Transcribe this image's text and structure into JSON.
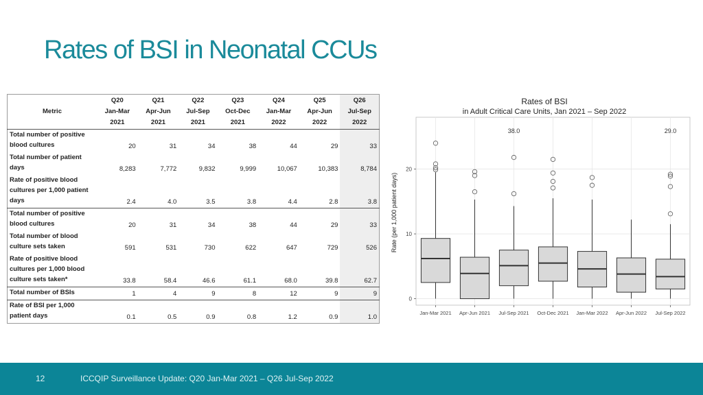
{
  "slide": {
    "title": "Rates of BSI in Neonatal CCUs",
    "page_number": "12",
    "footer_text": "ICCQIP Surveillance Update: Q20 Jan-Mar 2021 – Q26 Jul-Sep 2022"
  },
  "table": {
    "metric_header": "Metric",
    "columns": [
      {
        "q": "Q20",
        "months": "Jan-Mar",
        "year": "2021"
      },
      {
        "q": "Q21",
        "months": "Apr-Jun",
        "year": "2021"
      },
      {
        "q": "Q22",
        "months": "Jul-Sep",
        "year": "2021"
      },
      {
        "q": "Q23",
        "months": "Oct-Dec",
        "year": "2021"
      },
      {
        "q": "Q24",
        "months": "Jan-Mar",
        "year": "2022"
      },
      {
        "q": "Q25",
        "months": "Apr-Jun",
        "year": "2022"
      },
      {
        "q": "Q26",
        "months": "Jul-Sep",
        "year": "2022"
      }
    ],
    "rows": [
      {
        "label": [
          "Total number of positive",
          "blood cultures"
        ],
        "values": [
          "20",
          "31",
          "34",
          "38",
          "44",
          "29",
          "33"
        ]
      },
      {
        "label": [
          "Total number of patient",
          "days"
        ],
        "values": [
          "8,283",
          "7,772",
          "9,832",
          "9,999",
          "10,067",
          "10,383",
          "8,784"
        ]
      },
      {
        "label": [
          "Rate of positive blood",
          "cultures per 1,000 patient",
          "days"
        ],
        "values": [
          "2.4",
          "4.0",
          "3.5",
          "3.8",
          "4.4",
          "2.8",
          "3.8"
        ]
      },
      {
        "label": [
          "Total number of positive",
          "blood cultures"
        ],
        "values": [
          "20",
          "31",
          "34",
          "38",
          "44",
          "29",
          "33"
        ]
      },
      {
        "label": [
          "Total number of blood",
          "culture sets taken"
        ],
        "values": [
          "591",
          "531",
          "730",
          "622",
          "647",
          "729",
          "526"
        ]
      },
      {
        "label": [
          "Rate of positive blood",
          "cultures per 1,000 blood",
          "culture sets taken*"
        ],
        "values": [
          "33.8",
          "58.4",
          "46.6",
          "61.1",
          "68.0",
          "39.8",
          "62.7"
        ]
      },
      {
        "label": [
          "Total number of BSIs"
        ],
        "values": [
          "1",
          "4",
          "9",
          "8",
          "12",
          "9",
          "9"
        ]
      },
      {
        "label": [
          "Rate of BSI per 1,000",
          "patient days"
        ],
        "values": [
          "0.1",
          "0.5",
          "0.9",
          "0.8",
          "1.2",
          "0.9",
          "1.0"
        ]
      }
    ]
  },
  "chart_data": {
    "type": "box",
    "title": "Rates of BSI",
    "subtitle": "in Adult Critical Care Units, Jan 2021 – Sep 2022",
    "ylabel": "Rate (per 1,000 patient days)",
    "xlabel": "",
    "ylim": [
      -1,
      28
    ],
    "yticks": [
      0,
      10,
      20
    ],
    "grid": true,
    "categories": [
      "Jan-Mar 2021",
      "Apr-Jun 2021",
      "Jul-Sep 2021",
      "Oct-Dec 2021",
      "Jan-Mar 2022",
      "Apr-Jun 2022",
      "Jul-Sep 2022"
    ],
    "boxes": [
      {
        "min": 0,
        "q1": 2.5,
        "median": 6.2,
        "q3": 9.3,
        "max": 19.5,
        "outliers": [
          19.9,
          20.2,
          20.8,
          24
        ]
      },
      {
        "min": 0,
        "q1": 0,
        "median": 3.9,
        "q3": 6.4,
        "max": 15.3,
        "outliers": [
          16.5,
          19,
          19.6
        ]
      },
      {
        "min": 0,
        "q1": 2,
        "median": 5.1,
        "q3": 7.5,
        "max": 14.3,
        "outliers": [
          16.2,
          21.8
        ]
      },
      {
        "min": 0,
        "q1": 2.7,
        "median": 5.5,
        "q3": 8.0,
        "max": 15.5,
        "outliers": [
          17.1,
          18.1,
          19.4,
          21.5
        ]
      },
      {
        "min": 0,
        "q1": 1.8,
        "median": 4.6,
        "q3": 7.3,
        "max": 15.3,
        "outliers": [
          17.5,
          18.7
        ]
      },
      {
        "min": 0,
        "q1": 1.0,
        "median": 3.8,
        "q3": 6.3,
        "max": 12.2,
        "outliers": []
      },
      {
        "min": 0,
        "q1": 1.5,
        "median": 3.4,
        "q3": 6.1,
        "max": 11.5,
        "outliers": [
          13.1,
          17.3,
          18.9,
          19.2
        ]
      }
    ],
    "annotations": [
      {
        "category_index": 2,
        "text": "38.0"
      },
      {
        "category_index": 6,
        "text": "29.0"
      }
    ],
    "colors": {
      "box_fill": "#d9d9d9",
      "box_stroke": "#333333",
      "grid": "#e6e6e6",
      "panel_border": "#bbbbbb"
    }
  }
}
